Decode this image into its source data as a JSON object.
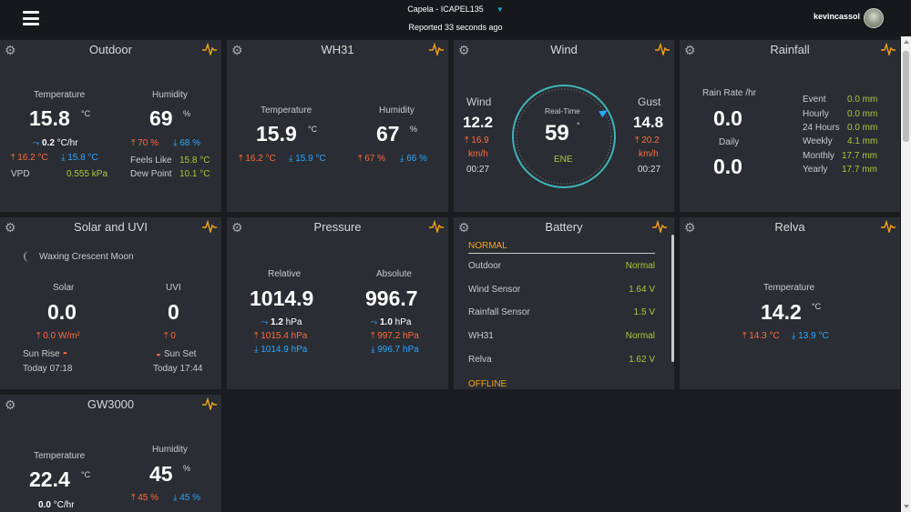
{
  "header": {
    "station": "Capela - ICAPEL135",
    "reported": "Reported 33 seconds ago",
    "user": "kevincassol"
  },
  "outdoor": {
    "title": "Outdoor",
    "temp_label": "Temperature",
    "temp": "15.8",
    "temp_unit": "°C",
    "trend": "0.2",
    "trend_unit": "°C/hr",
    "temp_hi": "16.2 °C",
    "temp_lo": "15.8 °C",
    "hum_label": "Humidity",
    "hum": "69",
    "hum_unit": "%",
    "hum_hi": "70 %",
    "hum_lo": "68 %",
    "vpd_label": "VPD",
    "vpd": "0.555 kPa",
    "feels_label": "Feels Like",
    "feels": "15.8 °C",
    "dew_label": "Dew Point",
    "dew": "10.1 °C"
  },
  "wh31": {
    "title": "WH31",
    "temp_label": "Temperature",
    "temp": "15.9",
    "temp_unit": "°C",
    "temp_hi": "16.2 °C",
    "temp_lo": "15.9 °C",
    "hum_label": "Humidity",
    "hum": "67",
    "hum_unit": "%",
    "hum_hi": "67 %",
    "hum_lo": "66 %"
  },
  "wind": {
    "title": "Wind",
    "wind_label": "Wind",
    "wind": "12.2",
    "wind_max": "16.9",
    "wind_unit": "km/h",
    "wind_time": "00:27",
    "gust_label": "Gust",
    "gust": "14.8",
    "gust_max": "20.2",
    "gust_unit": "km/h",
    "gust_time": "00:27",
    "rt_label": "Real-Time",
    "direction_deg": "59",
    "deg_sym": "°",
    "direction": "ENE",
    "direction_angle": 59
  },
  "rainfall": {
    "title": "Rainfall",
    "rate_label": "Rain Rate /hr",
    "rate": "0.0",
    "daily_label": "Daily",
    "daily": "0.0",
    "rows": [
      {
        "label": "Event",
        "value": "0.0 mm"
      },
      {
        "label": "Hourly",
        "value": "0.0 mm"
      },
      {
        "label": "24 Hours",
        "value": "0.0 mm"
      },
      {
        "label": "Weekly",
        "value": "4.1 mm"
      },
      {
        "label": "Monthly",
        "value": "17.7 mm"
      },
      {
        "label": "Yearly",
        "value": "17.7 mm"
      }
    ]
  },
  "solar": {
    "title": "Solar and UVI",
    "moon": "Waxing Crescent Moon",
    "solar_label": "Solar",
    "solar": "0.0",
    "solar_max": "0.0 W/m²",
    "uvi_label": "UVI",
    "uvi": "0",
    "uvi_max": "0",
    "sunrise_label": "Sun Rise",
    "sunrise": "Today 07:18",
    "sunset_label": "Sun Set",
    "sunset": "Today 17:44"
  },
  "pressure": {
    "title": "Pressure",
    "rel_label": "Relative",
    "rel": "1014.9",
    "rel_trend": "1.2",
    "rel_trend_unit": "hPa",
    "rel_hi": "1015.4 hPa",
    "rel_lo": "1014.9 hPa",
    "abs_label": "Absolute",
    "abs": "996.7",
    "abs_trend": "1.0",
    "abs_trend_unit": "hPa",
    "abs_hi": "997.2 hPa",
    "abs_lo": "996.7 hPa"
  },
  "battery": {
    "title": "Battery",
    "normal_label": "NORMAL",
    "rows": [
      {
        "label": "Outdoor",
        "value": "Normal"
      },
      {
        "label": "Wind Sensor",
        "value": "1.64 V"
      },
      {
        "label": "Rainfall Sensor",
        "value": "1.5 V"
      },
      {
        "label": "WH31",
        "value": "Normal"
      },
      {
        "label": "Relva",
        "value": "1.62 V"
      }
    ],
    "offline_label": "OFFLINE"
  },
  "relva": {
    "title": "Relva",
    "temp_label": "Temperature",
    "temp": "14.2",
    "temp_unit": "°C",
    "temp_hi": "14.3 °C",
    "temp_lo": "13.9 °C"
  },
  "gw3000": {
    "title": "GW3000",
    "temp_label": "Temperature",
    "temp": "22.4",
    "temp_unit": "°C",
    "trend": "0.0",
    "trend_unit": "°C/hr",
    "hum_label": "Humidity",
    "hum": "45",
    "hum_unit": "%",
    "hum_hi": "45 %",
    "hum_lo": "45 %"
  },
  "colors": {
    "accent": "#1ea7e1",
    "high": "#ff6a3d",
    "low": "#2aa7ff",
    "green": "#a8c93a",
    "orange": "#f6a21b",
    "card": "#2a2d33"
  }
}
